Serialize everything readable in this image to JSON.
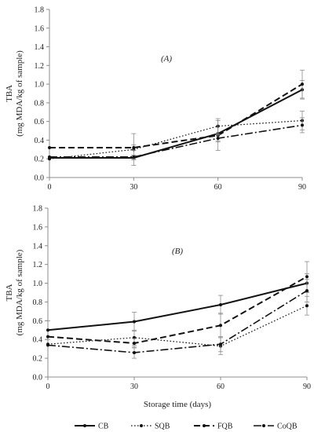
{
  "legend": [
    {
      "name": "CB",
      "dash": "",
      "width": 2
    },
    {
      "name": "SQB",
      "dash": "1.6,2.4",
      "width": 1.2
    },
    {
      "name": "FQB",
      "dash": "8,4",
      "width": 2
    },
    {
      "name": "CoQB",
      "dash": "10,3,2,3",
      "width": 1.6
    }
  ],
  "chart_data": [
    {
      "type": "line",
      "panel_label": "(A)",
      "ylabel_line1": "TBA",
      "ylabel_line2": "(mg MDA/kg of sample)",
      "xlabel": "",
      "x": [
        0,
        30,
        60,
        90
      ],
      "x_tick_labels": [
        "0",
        "30",
        "60",
        "90"
      ],
      "xlim": [
        0,
        90
      ],
      "ylim": [
        0,
        1.8
      ],
      "y_ticks": [
        0.0,
        0.2,
        0.4,
        0.6,
        0.8,
        1.0,
        1.2,
        1.4,
        1.6,
        1.8
      ],
      "y_tick_labels": [
        "0.0",
        "0.2",
        "0.4",
        "0.6",
        "0.8",
        "1.0",
        "1.2",
        "1.4",
        "1.6",
        "1.8"
      ],
      "grid": false,
      "series": [
        {
          "name": "CB",
          "values": [
            0.21,
            0.21,
            0.47,
            0.94
          ],
          "errors": [
            0.0,
            0.02,
            0.08,
            0.1
          ]
        },
        {
          "name": "SQB",
          "values": [
            0.2,
            0.3,
            0.55,
            0.61
          ],
          "errors": [
            0.0,
            0.17,
            0.08,
            0.1
          ]
        },
        {
          "name": "FQB",
          "values": [
            0.32,
            0.32,
            0.45,
            1.0
          ],
          "errors": [
            0.0,
            0.03,
            0.16,
            0.15
          ]
        },
        {
          "name": "CoQB",
          "values": [
            0.22,
            0.22,
            0.42,
            0.56
          ],
          "errors": [
            0.0,
            0.02,
            0.04,
            0.08
          ]
        }
      ]
    },
    {
      "type": "line",
      "panel_label": "(B)",
      "ylabel_line1": "TBA",
      "ylabel_line2": "(mg MDA/kg of sample)",
      "xlabel": "Storage time (days)",
      "x": [
        0,
        30,
        60,
        90
      ],
      "x_tick_labels": [
        "0",
        "30",
        "60",
        "90"
      ],
      "xlim": [
        0,
        90
      ],
      "ylim": [
        0,
        1.8
      ],
      "y_ticks": [
        0.0,
        0.2,
        0.4,
        0.6,
        0.8,
        1.0,
        1.2,
        1.4,
        1.6,
        1.8
      ],
      "y_tick_labels": [
        "0.0",
        "0.2",
        "0.4",
        "0.6",
        "0.8",
        "1.0",
        "1.2",
        "1.4",
        "1.6",
        "1.8"
      ],
      "grid": false,
      "series": [
        {
          "name": "CB",
          "values": [
            0.5,
            0.59,
            0.77,
            1.0
          ],
          "errors": [
            0.1,
            0.1,
            0.1,
            0.1
          ]
        },
        {
          "name": "SQB",
          "values": [
            0.35,
            0.42,
            0.33,
            0.76
          ],
          "errors": [
            0.0,
            0.08,
            0.09,
            0.1
          ]
        },
        {
          "name": "FQB",
          "values": [
            0.43,
            0.36,
            0.55,
            1.07
          ],
          "errors": [
            0.0,
            0.05,
            0.13,
            0.16
          ]
        },
        {
          "name": "CoQB",
          "values": [
            0.34,
            0.26,
            0.35,
            0.92
          ],
          "errors": [
            0.0,
            0.06,
            0.08,
            0.12
          ]
        }
      ]
    }
  ]
}
